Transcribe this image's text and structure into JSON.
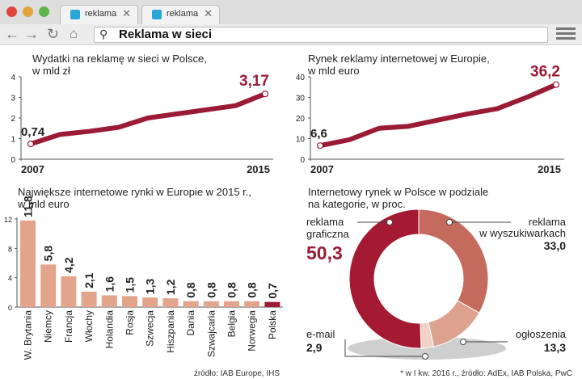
{
  "browser": {
    "tabs": [
      {
        "label": "reklama"
      },
      {
        "label": "reklama"
      }
    ],
    "address": "Reklama w sieci",
    "close_glyph": "✕"
  },
  "colors": {
    "accent": "#9b1a34",
    "bar": "#e3a48c",
    "bar_last": "#9b1a34",
    "seg1": "#a51a33",
    "seg2": "#c56b5e",
    "seg3": "#dca28f",
    "seg4": "#f0d2c8"
  },
  "chart_data": [
    {
      "type": "line",
      "title": "Wydatki na reklamę w sieci w Polsce,",
      "subtitle": "w mld zł",
      "x": [
        2007,
        2008,
        2009,
        2010,
        2011,
        2012,
        2013,
        2014,
        2015
      ],
      "values": [
        0.74,
        1.2,
        1.35,
        1.55,
        2.0,
        2.2,
        2.4,
        2.6,
        3.17
      ],
      "start_label": "0,74",
      "end_label": "3,17",
      "x_tick_labels": [
        "2007",
        "2015"
      ],
      "y_ticks": [
        "4",
        "3",
        "2",
        "1",
        "0"
      ],
      "ylim": [
        0,
        4
      ]
    },
    {
      "type": "line",
      "title": "Rynek reklamy internetowej w Europie,",
      "subtitle": "w mld euro",
      "x": [
        2007,
        2008,
        2009,
        2010,
        2011,
        2012,
        2013,
        2014,
        2015
      ],
      "values": [
        6.6,
        9.5,
        15.0,
        16.0,
        19.0,
        22.0,
        24.5,
        30.0,
        36.2
      ],
      "start_label": "6,6",
      "end_label": "36,2",
      "x_tick_labels": [
        "2007",
        "2015"
      ],
      "y_ticks": [
        "40",
        "30",
        "20",
        "10",
        "0"
      ],
      "ylim": [
        0,
        40
      ]
    },
    {
      "type": "bar",
      "title": "Największe internetowe rynki w Europie w 2015 r.,",
      "subtitle": "w mld euro",
      "categories": [
        "W. Brytania",
        "Niemcy",
        "Francja",
        "Włochy",
        "Holandia",
        "Rosja",
        "Szwecja",
        "Hiszpania",
        "Dania",
        "Szwajcaria",
        "Belgia",
        "Norwegia",
        "Polska"
      ],
      "values": [
        11.8,
        5.8,
        4.2,
        2.1,
        1.6,
        1.5,
        1.3,
        1.2,
        0.8,
        0.8,
        0.8,
        0.8,
        0.7
      ],
      "value_labels": [
        "11,8",
        "5,8",
        "4,2",
        "2,1",
        "1,6",
        "1,5",
        "1,3",
        "1,2",
        "0,8",
        "0,8",
        "0,8",
        "0,8",
        "0,7"
      ],
      "y_ticks": [
        "12",
        "8",
        "4",
        "0"
      ],
      "ylim": [
        0,
        12
      ],
      "source": "źródło: IAB Europe, IHS"
    },
    {
      "type": "pie",
      "title": "Internetowy rynek w Polsce w podziale",
      "subtitle": "na kategorie, w proc.",
      "segments": [
        {
          "name_lines": [
            "reklama",
            "graficzna"
          ],
          "value": 50.3,
          "value_label": "50,3"
        },
        {
          "name_lines": [
            "reklama",
            "w wyszukiwarkach"
          ],
          "value": 33.0,
          "value_label": "33,0"
        },
        {
          "name_lines": [
            "ogłoszenia"
          ],
          "value": 13.3,
          "value_label": "13,3"
        },
        {
          "name_lines": [
            "e-mail"
          ],
          "value": 2.9,
          "value_label": "2,9"
        }
      ],
      "source": "* w I kw. 2016 r., źródło: AdEx, IAB Polska, PwC"
    }
  ]
}
